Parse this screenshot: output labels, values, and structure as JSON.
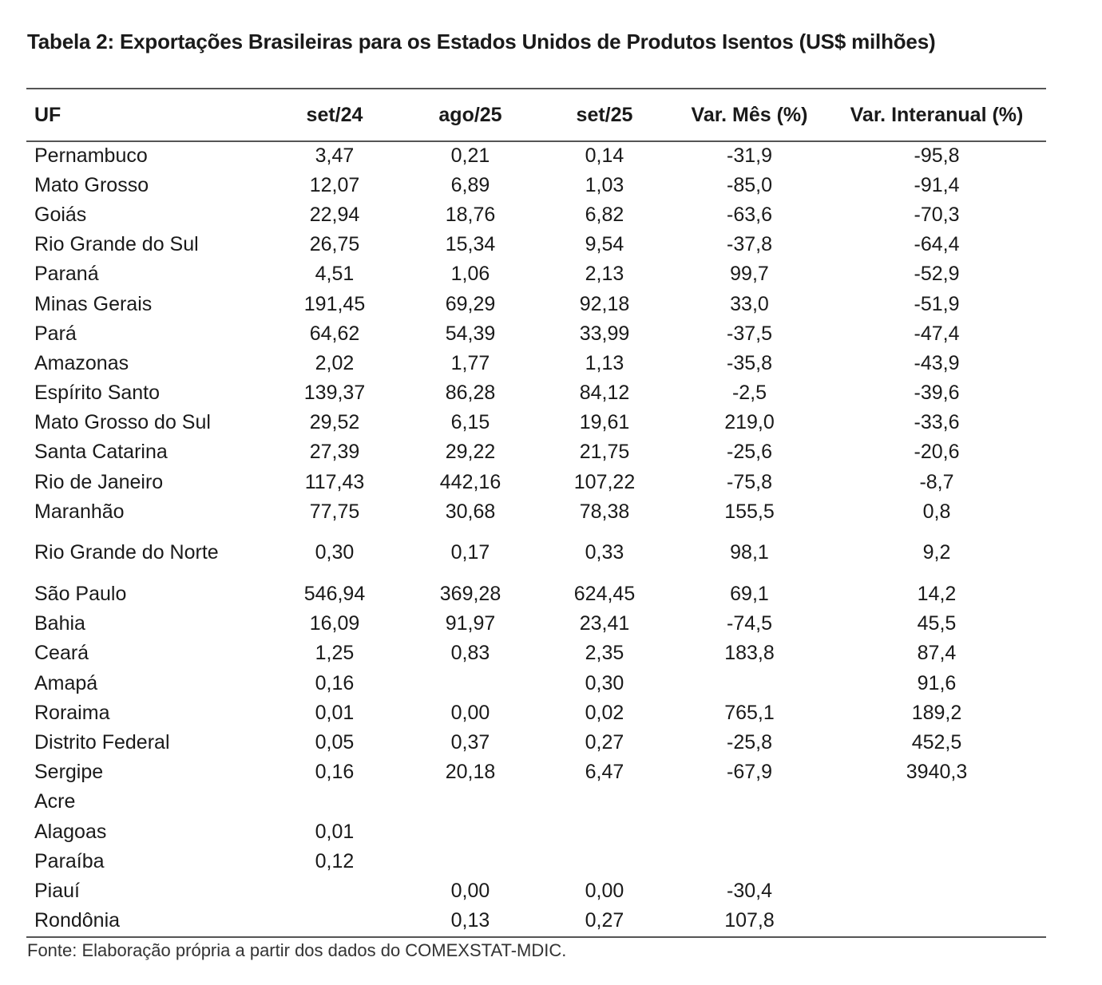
{
  "title": "Tabela 2: Exportações Brasileiras para os Estados Unidos de Produtos Isentos (US$ milhões)",
  "columns": [
    "UF",
    "set/24",
    "ago/25",
    "set/25",
    "Var. Mês (%)",
    "Var. Interanual (%)"
  ],
  "rows": [
    [
      "Pernambuco",
      "3,47",
      "0,21",
      "0,14",
      "-31,9",
      "-95,8"
    ],
    [
      "Mato Grosso",
      "12,07",
      "6,89",
      "1,03",
      "-85,0",
      "-91,4"
    ],
    [
      "Goiás",
      "22,94",
      "18,76",
      "6,82",
      "-63,6",
      "-70,3"
    ],
    [
      "Rio Grande do Sul",
      "26,75",
      "15,34",
      "9,54",
      "-37,8",
      "-64,4"
    ],
    [
      "Paraná",
      "4,51",
      "1,06",
      "2,13",
      "99,7",
      "-52,9"
    ],
    [
      "Minas Gerais",
      "191,45",
      "69,29",
      "92,18",
      "33,0",
      "-51,9"
    ],
    [
      "Pará",
      "64,62",
      "54,39",
      "33,99",
      "-37,5",
      "-47,4"
    ],
    [
      "Amazonas",
      "2,02",
      "1,77",
      "1,13",
      "-35,8",
      "-43,9"
    ],
    [
      "Espírito Santo",
      "139,37",
      "86,28",
      "84,12",
      "-2,5",
      "-39,6"
    ],
    [
      "Mato Grosso do Sul",
      "29,52",
      "6,15",
      "19,61",
      "219,0",
      "-33,6"
    ],
    [
      "Santa Catarina",
      "27,39",
      "29,22",
      "21,75",
      "-25,6",
      "-20,6"
    ],
    [
      "Rio de Janeiro",
      "117,43",
      "442,16",
      "107,22",
      "-75,8",
      "-8,7"
    ],
    [
      "Maranhão",
      "77,75",
      "30,68",
      "78,38",
      "155,5",
      "0,8"
    ],
    [
      "Rio Grande do Norte",
      "0,30",
      "0,17",
      "0,33",
      "98,1",
      "9,2"
    ],
    [
      "São Paulo",
      "546,94",
      "369,28",
      "624,45",
      "69,1",
      "14,2"
    ],
    [
      "Bahia",
      "16,09",
      "91,97",
      "23,41",
      "-74,5",
      "45,5"
    ],
    [
      "Ceará",
      "1,25",
      "0,83",
      "2,35",
      "183,8",
      "87,4"
    ],
    [
      "Amapá",
      "0,16",
      "",
      "0,30",
      "",
      "91,6"
    ],
    [
      "Roraima",
      "0,01",
      "0,00",
      "0,02",
      "765,1",
      "189,2"
    ],
    [
      "Distrito Federal",
      "0,05",
      "0,37",
      "0,27",
      "-25,8",
      "452,5"
    ],
    [
      "Sergipe",
      "0,16",
      "20,18",
      "6,47",
      "-67,9",
      "3940,3"
    ],
    [
      "Acre",
      "",
      "",
      "",
      "",
      ""
    ],
    [
      "Alagoas",
      "0,01",
      "",
      "",
      "",
      ""
    ],
    [
      "Paraíba",
      "0,12",
      "",
      "",
      "",
      ""
    ],
    [
      "Piauí",
      "",
      "0,00",
      "0,00",
      "-30,4",
      ""
    ],
    [
      "Rondônia",
      "",
      "0,13",
      "0,27",
      "107,8",
      ""
    ]
  ],
  "source": "Fonte: Elaboração própria a partir dos dados do COMEXSTAT-MDIC."
}
